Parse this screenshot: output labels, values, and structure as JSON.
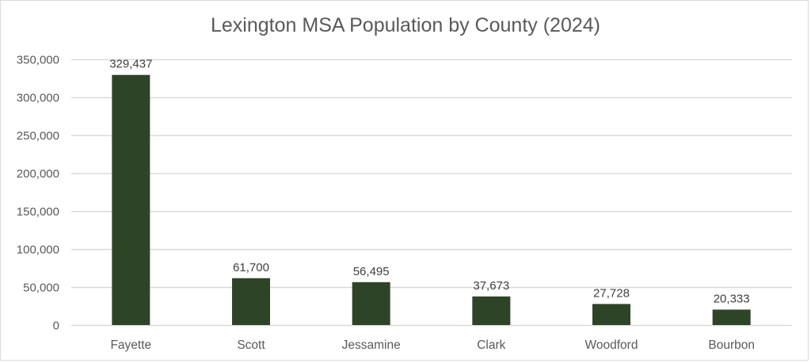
{
  "chart_data": {
    "type": "bar",
    "title": "Lexington MSA Population by County (2024)",
    "xlabel": "",
    "ylabel": "",
    "categories": [
      "Fayette",
      "Scott",
      "Jessamine",
      "Clark",
      "Woodford",
      "Bourbon"
    ],
    "values": [
      329437,
      61700,
      56495,
      37673,
      27728,
      20333
    ],
    "data_labels": [
      "329,437",
      "61,700",
      "56,495",
      "37,673",
      "27,728",
      "20,333"
    ],
    "ylim": [
      0,
      350000
    ],
    "yticks": [
      0,
      50000,
      100000,
      150000,
      200000,
      250000,
      300000,
      350000
    ],
    "ytick_labels": [
      "0",
      "50,000",
      "100,000",
      "150,000",
      "200,000",
      "250,000",
      "300,000",
      "350,000"
    ],
    "grid": true,
    "legend": "none",
    "bar_color": "#2e4427",
    "grid_color": "#d9d9d9"
  }
}
